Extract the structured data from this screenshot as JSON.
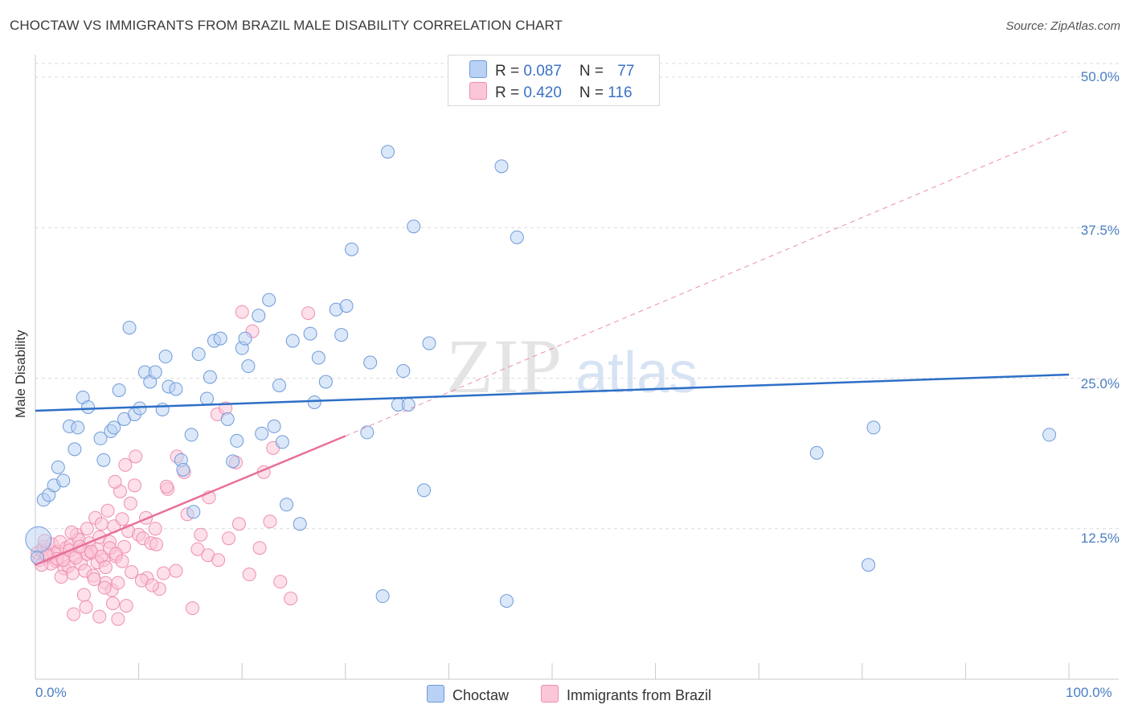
{
  "title": "CHOCTAW VS IMMIGRANTS FROM BRAZIL MALE DISABILITY CORRELATION CHART",
  "source": "Source: ZipAtlas.com",
  "watermark": "ZIPatlas",
  "colors": {
    "blue": "#6f9ad9",
    "blue_fill": "#b8d1f4",
    "blue_line": "#2d6fc7",
    "pink": "#ee8fb0",
    "pink_fill": "#fbc6d7",
    "pink_line": "#e8709a",
    "tick": "#4a7ec2"
  },
  "legend": {
    "rows": [
      {
        "r_label": "R = ",
        "r_value": "0.087",
        "n_label": "N = ",
        "n_value": "77"
      },
      {
        "r_label": "R = ",
        "r_value": "0.420",
        "n_label": "N = ",
        "n_value": "116"
      }
    ]
  },
  "bottom_legend": {
    "series1": "Choctaw",
    "series2": "Immigrants from Brazil"
  },
  "chart_data": {
    "type": "scatter",
    "title": "CHOCTAW VS IMMIGRANTS FROM BRAZIL MALE DISABILITY CORRELATION CHART",
    "xlabel": "",
    "ylabel": "Male Disability",
    "xlim": [
      0,
      100
    ],
    "ylim": [
      0,
      50
    ],
    "x_tick_labels": [
      "0.0%",
      "100.0%"
    ],
    "y_tick_labels": [
      "12.5%",
      "25.0%",
      "37.5%",
      "50.0%"
    ],
    "y_ticks": [
      12.5,
      25.0,
      37.5,
      50.0
    ],
    "grid": true,
    "legend_position": "top-center",
    "series": [
      {
        "name": "Choctaw",
        "R": 0.087,
        "N": 77,
        "trend": {
          "x": [
            0,
            100
          ],
          "y": [
            22.3,
            25.3
          ],
          "style": "solid"
        },
        "points": [
          [
            0.8,
            14.9
          ],
          [
            1.3,
            15.3
          ],
          [
            1.8,
            16.1
          ],
          [
            2.2,
            17.6
          ],
          [
            2.7,
            16.5
          ],
          [
            3.3,
            21.0
          ],
          [
            3.8,
            19.1
          ],
          [
            4.1,
            20.9
          ],
          [
            4.6,
            23.4
          ],
          [
            5.1,
            22.6
          ],
          [
            6.3,
            20.0
          ],
          [
            6.6,
            18.2
          ],
          [
            7.3,
            20.6
          ],
          [
            7.6,
            20.9
          ],
          [
            8.1,
            24.0
          ],
          [
            8.6,
            21.6
          ],
          [
            9.1,
            29.2
          ],
          [
            9.6,
            22.0
          ],
          [
            10.1,
            22.5
          ],
          [
            10.6,
            25.5
          ],
          [
            11.1,
            24.7
          ],
          [
            11.6,
            25.5
          ],
          [
            12.3,
            22.4
          ],
          [
            12.6,
            26.8
          ],
          [
            12.9,
            24.3
          ],
          [
            13.6,
            24.1
          ],
          [
            14.1,
            18.2
          ],
          [
            14.3,
            17.4
          ],
          [
            15.1,
            20.3
          ],
          [
            15.3,
            13.9
          ],
          [
            15.8,
            27.0
          ],
          [
            16.6,
            23.3
          ],
          [
            16.9,
            25.1
          ],
          [
            17.3,
            28.1
          ],
          [
            17.9,
            28.3
          ],
          [
            18.6,
            21.6
          ],
          [
            19.1,
            18.1
          ],
          [
            19.5,
            19.8
          ],
          [
            20.0,
            27.5
          ],
          [
            20.3,
            28.3
          ],
          [
            20.6,
            26.0
          ],
          [
            21.6,
            30.2
          ],
          [
            21.9,
            20.4
          ],
          [
            22.6,
            31.5
          ],
          [
            23.1,
            21.0
          ],
          [
            23.6,
            24.4
          ],
          [
            23.9,
            19.7
          ],
          [
            24.3,
            14.5
          ],
          [
            24.9,
            28.1
          ],
          [
            25.6,
            12.9
          ],
          [
            26.6,
            28.7
          ],
          [
            27.0,
            23.0
          ],
          [
            27.4,
            26.7
          ],
          [
            28.1,
            24.7
          ],
          [
            29.1,
            30.7
          ],
          [
            29.6,
            28.6
          ],
          [
            30.1,
            31.0
          ],
          [
            30.6,
            35.7
          ],
          [
            32.1,
            20.5
          ],
          [
            32.4,
            26.3
          ],
          [
            33.6,
            6.9
          ],
          [
            34.1,
            43.8
          ],
          [
            35.1,
            22.8
          ],
          [
            35.6,
            25.6
          ],
          [
            36.1,
            22.8
          ],
          [
            36.6,
            37.6
          ],
          [
            37.6,
            15.7
          ],
          [
            38.1,
            27.9
          ],
          [
            45.1,
            42.6
          ],
          [
            45.6,
            6.5
          ],
          [
            46.6,
            36.7
          ],
          [
            75.6,
            18.8
          ],
          [
            80.6,
            9.5
          ],
          [
            81.1,
            20.9
          ],
          [
            98.1,
            20.3
          ],
          [
            0.3,
            11.6
          ],
          [
            0.2,
            10.1
          ]
        ]
      },
      {
        "name": "Immigrants from Brazil",
        "R": 0.42,
        "N": 116,
        "trend": {
          "x": [
            0,
            30
          ],
          "y": [
            9.5,
            20.2
          ],
          "style": "solid",
          "extended": {
            "x": [
              30,
              100
            ],
            "y": [
              20.2,
              45.6
            ],
            "style": "dashed"
          }
        },
        "points": [
          [
            0.2,
            10.5
          ],
          [
            0.4,
            9.9
          ],
          [
            0.6,
            10.7
          ],
          [
            0.8,
            11.0
          ],
          [
            1.0,
            10.1
          ],
          [
            1.2,
            10.8
          ],
          [
            1.4,
            10.2
          ],
          [
            1.6,
            11.2
          ],
          [
            1.8,
            10.4
          ],
          [
            2.0,
            9.8
          ],
          [
            2.2,
            10.6
          ],
          [
            2.4,
            11.4
          ],
          [
            2.6,
            10.0
          ],
          [
            2.8,
            9.2
          ],
          [
            3.0,
            10.9
          ],
          [
            3.2,
            9.4
          ],
          [
            3.4,
            11.1
          ],
          [
            3.6,
            8.8
          ],
          [
            3.8,
            10.3
          ],
          [
            4.0,
            12.0
          ],
          [
            4.2,
            11.6
          ],
          [
            4.4,
            9.6
          ],
          [
            4.6,
            10.8
          ],
          [
            4.8,
            9.0
          ],
          [
            5.0,
            12.5
          ],
          [
            5.2,
            11.3
          ],
          [
            5.4,
            10.5
          ],
          [
            5.6,
            8.6
          ],
          [
            5.8,
            13.4
          ],
          [
            6.0,
            10.8
          ],
          [
            6.2,
            11.8
          ],
          [
            6.4,
            12.9
          ],
          [
            6.6,
            9.9
          ],
          [
            6.8,
            8.0
          ],
          [
            7.0,
            14.0
          ],
          [
            7.2,
            11.4
          ],
          [
            7.4,
            7.4
          ],
          [
            7.6,
            12.7
          ],
          [
            7.8,
            10.2
          ],
          [
            8.0,
            8.0
          ],
          [
            8.2,
            15.6
          ],
          [
            8.4,
            13.3
          ],
          [
            8.6,
            11.0
          ],
          [
            8.8,
            6.1
          ],
          [
            9.0,
            12.3
          ],
          [
            9.2,
            14.6
          ],
          [
            9.6,
            16.1
          ],
          [
            10.0,
            12.0
          ],
          [
            10.4,
            11.7
          ],
          [
            10.8,
            8.4
          ],
          [
            11.2,
            11.3
          ],
          [
            11.6,
            12.5
          ],
          [
            12.0,
            7.5
          ],
          [
            12.4,
            8.8
          ],
          [
            12.8,
            15.8
          ],
          [
            13.6,
            9.0
          ],
          [
            14.4,
            17.2
          ],
          [
            15.2,
            5.9
          ],
          [
            16.0,
            12.0
          ],
          [
            16.8,
            15.1
          ],
          [
            17.6,
            22.0
          ],
          [
            18.4,
            22.5
          ],
          [
            19.4,
            18.0
          ],
          [
            20.0,
            30.5
          ],
          [
            21.0,
            28.9
          ],
          [
            22.1,
            17.2
          ],
          [
            23.0,
            19.2
          ],
          [
            26.4,
            30.4
          ],
          [
            5.0,
            10.4
          ],
          [
            5.4,
            10.6
          ],
          [
            6.0,
            9.7
          ],
          [
            6.4,
            10.2
          ],
          [
            6.8,
            9.3
          ],
          [
            7.2,
            10.9
          ],
          [
            7.8,
            10.4
          ],
          [
            8.4,
            9.8
          ],
          [
            1.5,
            9.6
          ],
          [
            2.1,
            10.0
          ],
          [
            2.7,
            9.9
          ],
          [
            3.3,
            10.7
          ],
          [
            3.9,
            10.1
          ],
          [
            4.3,
            11.0
          ],
          [
            0.6,
            9.5
          ],
          [
            1.1,
            10.3
          ],
          [
            0.9,
            11.5
          ],
          [
            2.5,
            8.5
          ],
          [
            3.5,
            12.2
          ],
          [
            4.7,
            7.0
          ],
          [
            5.7,
            8.3
          ],
          [
            6.7,
            7.6
          ],
          [
            7.7,
            16.4
          ],
          [
            8.7,
            17.8
          ],
          [
            9.7,
            18.5
          ],
          [
            10.7,
            13.4
          ],
          [
            11.7,
            11.2
          ],
          [
            12.7,
            16.0
          ],
          [
            13.7,
            18.5
          ],
          [
            14.7,
            13.7
          ],
          [
            15.7,
            10.8
          ],
          [
            16.7,
            10.3
          ],
          [
            17.7,
            9.9
          ],
          [
            18.7,
            11.7
          ],
          [
            19.7,
            12.9
          ],
          [
            20.7,
            8.7
          ],
          [
            21.7,
            10.9
          ],
          [
            22.7,
            13.1
          ],
          [
            23.7,
            8.1
          ],
          [
            24.7,
            6.7
          ],
          [
            3.7,
            5.4
          ],
          [
            4.9,
            6.0
          ],
          [
            6.2,
            5.2
          ],
          [
            7.5,
            6.3
          ],
          [
            8.0,
            5.0
          ],
          [
            9.3,
            8.9
          ],
          [
            10.3,
            8.2
          ],
          [
            11.3,
            7.8
          ]
        ]
      }
    ]
  }
}
